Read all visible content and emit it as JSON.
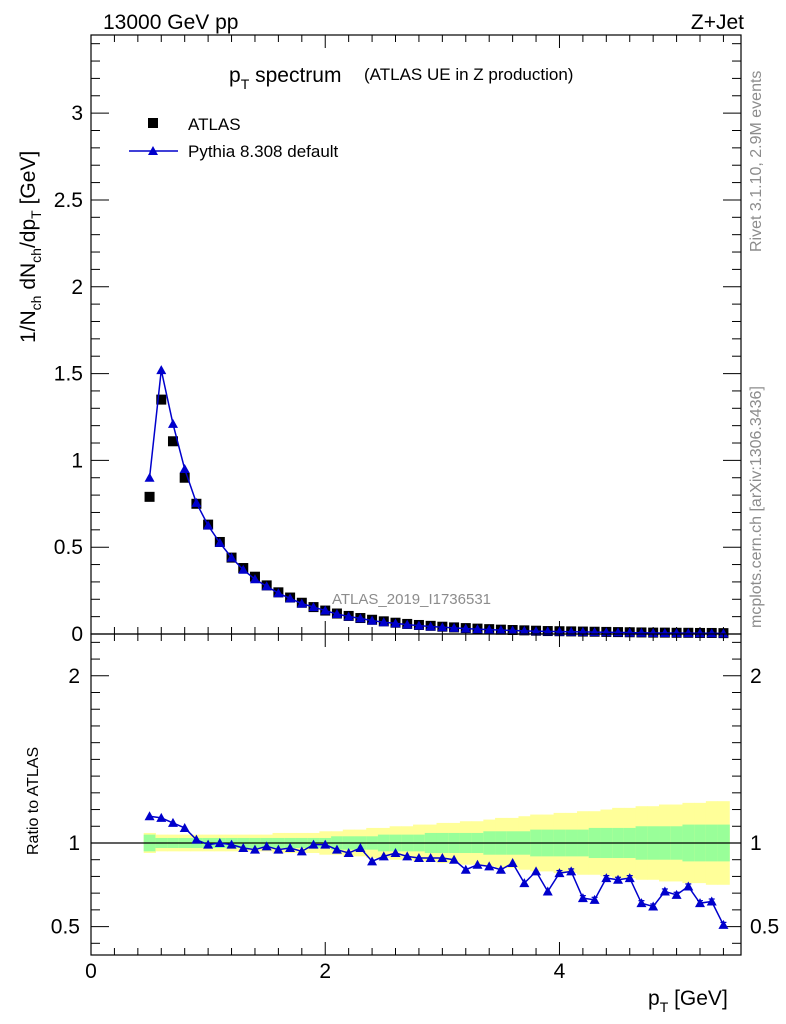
{
  "header": {
    "left": "13000 GeV pp",
    "right": "Z+Jet"
  },
  "side_text": {
    "rivet": "Rivet 3.1.10,  2.9M events",
    "mcplots": "mcplots.cern.ch [arXiv:1306.3436]"
  },
  "colors": {
    "data": "#000000",
    "mc": "#0000cc",
    "band_inner": "#99ff99",
    "band_outer": "#ffff99"
  },
  "chart_data": [
    {
      "type": "scatter",
      "title_main": "p",
      "title_sub": "T",
      "title_rest": " spectrum",
      "title_extra": "(ATLAS UE in Z production)",
      "ylabel": "1/N_ch dN_ch/dp_T [GeV]",
      "analysis_label": "ATLAS_2019_I1736531",
      "xlim": [
        0,
        5.55
      ],
      "ylim": [
        0,
        3.45
      ],
      "yticks": [
        "0",
        "0.5",
        "1",
        "1.5",
        "2",
        "2.5",
        "3"
      ],
      "legend": {
        "data_label": "ATLAS",
        "mc_label": "Pythia 8.308 default",
        "position": "top-left"
      },
      "x": [
        0.5,
        0.6,
        0.7,
        0.8,
        0.9,
        1.0,
        1.1,
        1.2,
        1.3,
        1.4,
        1.5,
        1.6,
        1.7,
        1.8,
        1.9,
        2.0,
        2.1,
        2.2,
        2.3,
        2.4,
        2.5,
        2.6,
        2.7,
        2.8,
        2.9,
        3.0,
        3.1,
        3.2,
        3.3,
        3.4,
        3.5,
        3.6,
        3.7,
        3.8,
        3.9,
        4.0,
        4.1,
        4.2,
        4.3,
        4.4,
        4.5,
        4.6,
        4.7,
        4.8,
        4.9,
        5.0,
        5.1,
        5.2,
        5.3,
        5.4
      ],
      "series": [
        {
          "name": "ATLAS",
          "values": [
            0.79,
            1.35,
            1.11,
            0.9,
            0.75,
            0.63,
            0.53,
            0.44,
            0.38,
            0.33,
            0.28,
            0.24,
            0.21,
            0.18,
            0.155,
            0.135,
            0.118,
            0.104,
            0.092,
            0.082,
            0.073,
            0.065,
            0.058,
            0.052,
            0.047,
            0.042,
            0.038,
            0.034,
            0.031,
            0.028,
            0.025,
            0.023,
            0.021,
            0.019,
            0.017,
            0.016,
            0.015,
            0.014,
            0.013,
            0.012,
            0.011,
            0.01,
            0.009,
            0.008,
            0.008,
            0.007,
            0.007,
            0.006,
            0.006,
            0.005
          ]
        },
        {
          "name": "Pythia 8.308 default",
          "values": [
            0.9,
            1.52,
            1.21,
            0.95,
            0.755,
            0.625,
            0.525,
            0.44,
            0.37,
            0.315,
            0.275,
            0.235,
            0.205,
            0.175,
            0.155,
            0.135,
            0.115,
            0.101,
            0.09,
            0.077,
            0.068,
            0.061,
            0.054,
            0.048,
            0.043,
            0.039,
            0.035,
            0.031,
            0.028,
            0.025,
            0.022,
            0.02,
            0.018,
            0.016,
            0.015,
            0.014,
            0.013,
            0.012,
            0.011,
            0.01,
            0.009,
            0.008,
            0.007,
            0.006,
            0.006,
            0.005,
            0.005,
            0.004,
            0.004,
            0.003
          ]
        }
      ]
    },
    {
      "type": "line",
      "ylabel": "Ratio to ATLAS",
      "xlabel_main": "p",
      "xlabel_sub": "T",
      "xlabel_rest": " [GeV]",
      "xlim": [
        0,
        5.55
      ],
      "ylim": [
        0.33,
        2.25
      ],
      "xticks": [
        "0",
        "2",
        "4"
      ],
      "yticks": [
        "0.5",
        "1",
        "2"
      ],
      "x": [
        0.5,
        0.6,
        0.7,
        0.8,
        0.9,
        1.0,
        1.1,
        1.2,
        1.3,
        1.4,
        1.5,
        1.6,
        1.7,
        1.8,
        1.9,
        2.0,
        2.1,
        2.2,
        2.3,
        2.4,
        2.5,
        2.6,
        2.7,
        2.8,
        2.9,
        3.0,
        3.1,
        3.2,
        3.3,
        3.4,
        3.5,
        3.6,
        3.7,
        3.8,
        3.9,
        4.0,
        4.1,
        4.2,
        4.3,
        4.4,
        4.5,
        4.6,
        4.7,
        4.8,
        4.9,
        5.0,
        5.1,
        5.2,
        5.3,
        5.4
      ],
      "series": [
        {
          "name": "Pythia 8.308 default",
          "values": [
            1.16,
            1.15,
            1.12,
            1.09,
            1.02,
            0.99,
            1.0,
            0.99,
            0.97,
            0.96,
            0.98,
            0.96,
            0.97,
            0.95,
            0.99,
            0.99,
            0.96,
            0.94,
            0.97,
            0.89,
            0.92,
            0.94,
            0.92,
            0.91,
            0.91,
            0.91,
            0.9,
            0.84,
            0.87,
            0.86,
            0.84,
            0.88,
            0.76,
            0.83,
            0.71,
            0.82,
            0.83,
            0.67,
            0.66,
            0.79,
            0.78,
            0.79,
            0.64,
            0.62,
            0.71,
            0.69,
            0.74,
            0.64,
            0.65,
            0.51
          ]
        }
      ],
      "band_inner_halfwidth": [
        0.05,
        0.03,
        0.03,
        0.03,
        0.03,
        0.03,
        0.03,
        0.03,
        0.03,
        0.03,
        0.03,
        0.03,
        0.03,
        0.03,
        0.03,
        0.03,
        0.04,
        0.04,
        0.04,
        0.04,
        0.05,
        0.05,
        0.05,
        0.05,
        0.06,
        0.06,
        0.06,
        0.06,
        0.06,
        0.07,
        0.07,
        0.07,
        0.07,
        0.08,
        0.08,
        0.08,
        0.08,
        0.08,
        0.09,
        0.09,
        0.09,
        0.09,
        0.1,
        0.1,
        0.1,
        0.1,
        0.11,
        0.11,
        0.11,
        0.11
      ],
      "band_outer_halfwidth": [
        0.06,
        0.05,
        0.05,
        0.05,
        0.05,
        0.05,
        0.05,
        0.05,
        0.05,
        0.05,
        0.05,
        0.06,
        0.06,
        0.06,
        0.06,
        0.07,
        0.07,
        0.08,
        0.08,
        0.09,
        0.09,
        0.1,
        0.1,
        0.11,
        0.11,
        0.12,
        0.12,
        0.13,
        0.13,
        0.14,
        0.15,
        0.15,
        0.16,
        0.17,
        0.17,
        0.18,
        0.18,
        0.19,
        0.19,
        0.2,
        0.21,
        0.21,
        0.22,
        0.22,
        0.23,
        0.23,
        0.24,
        0.24,
        0.25,
        0.25
      ]
    }
  ]
}
